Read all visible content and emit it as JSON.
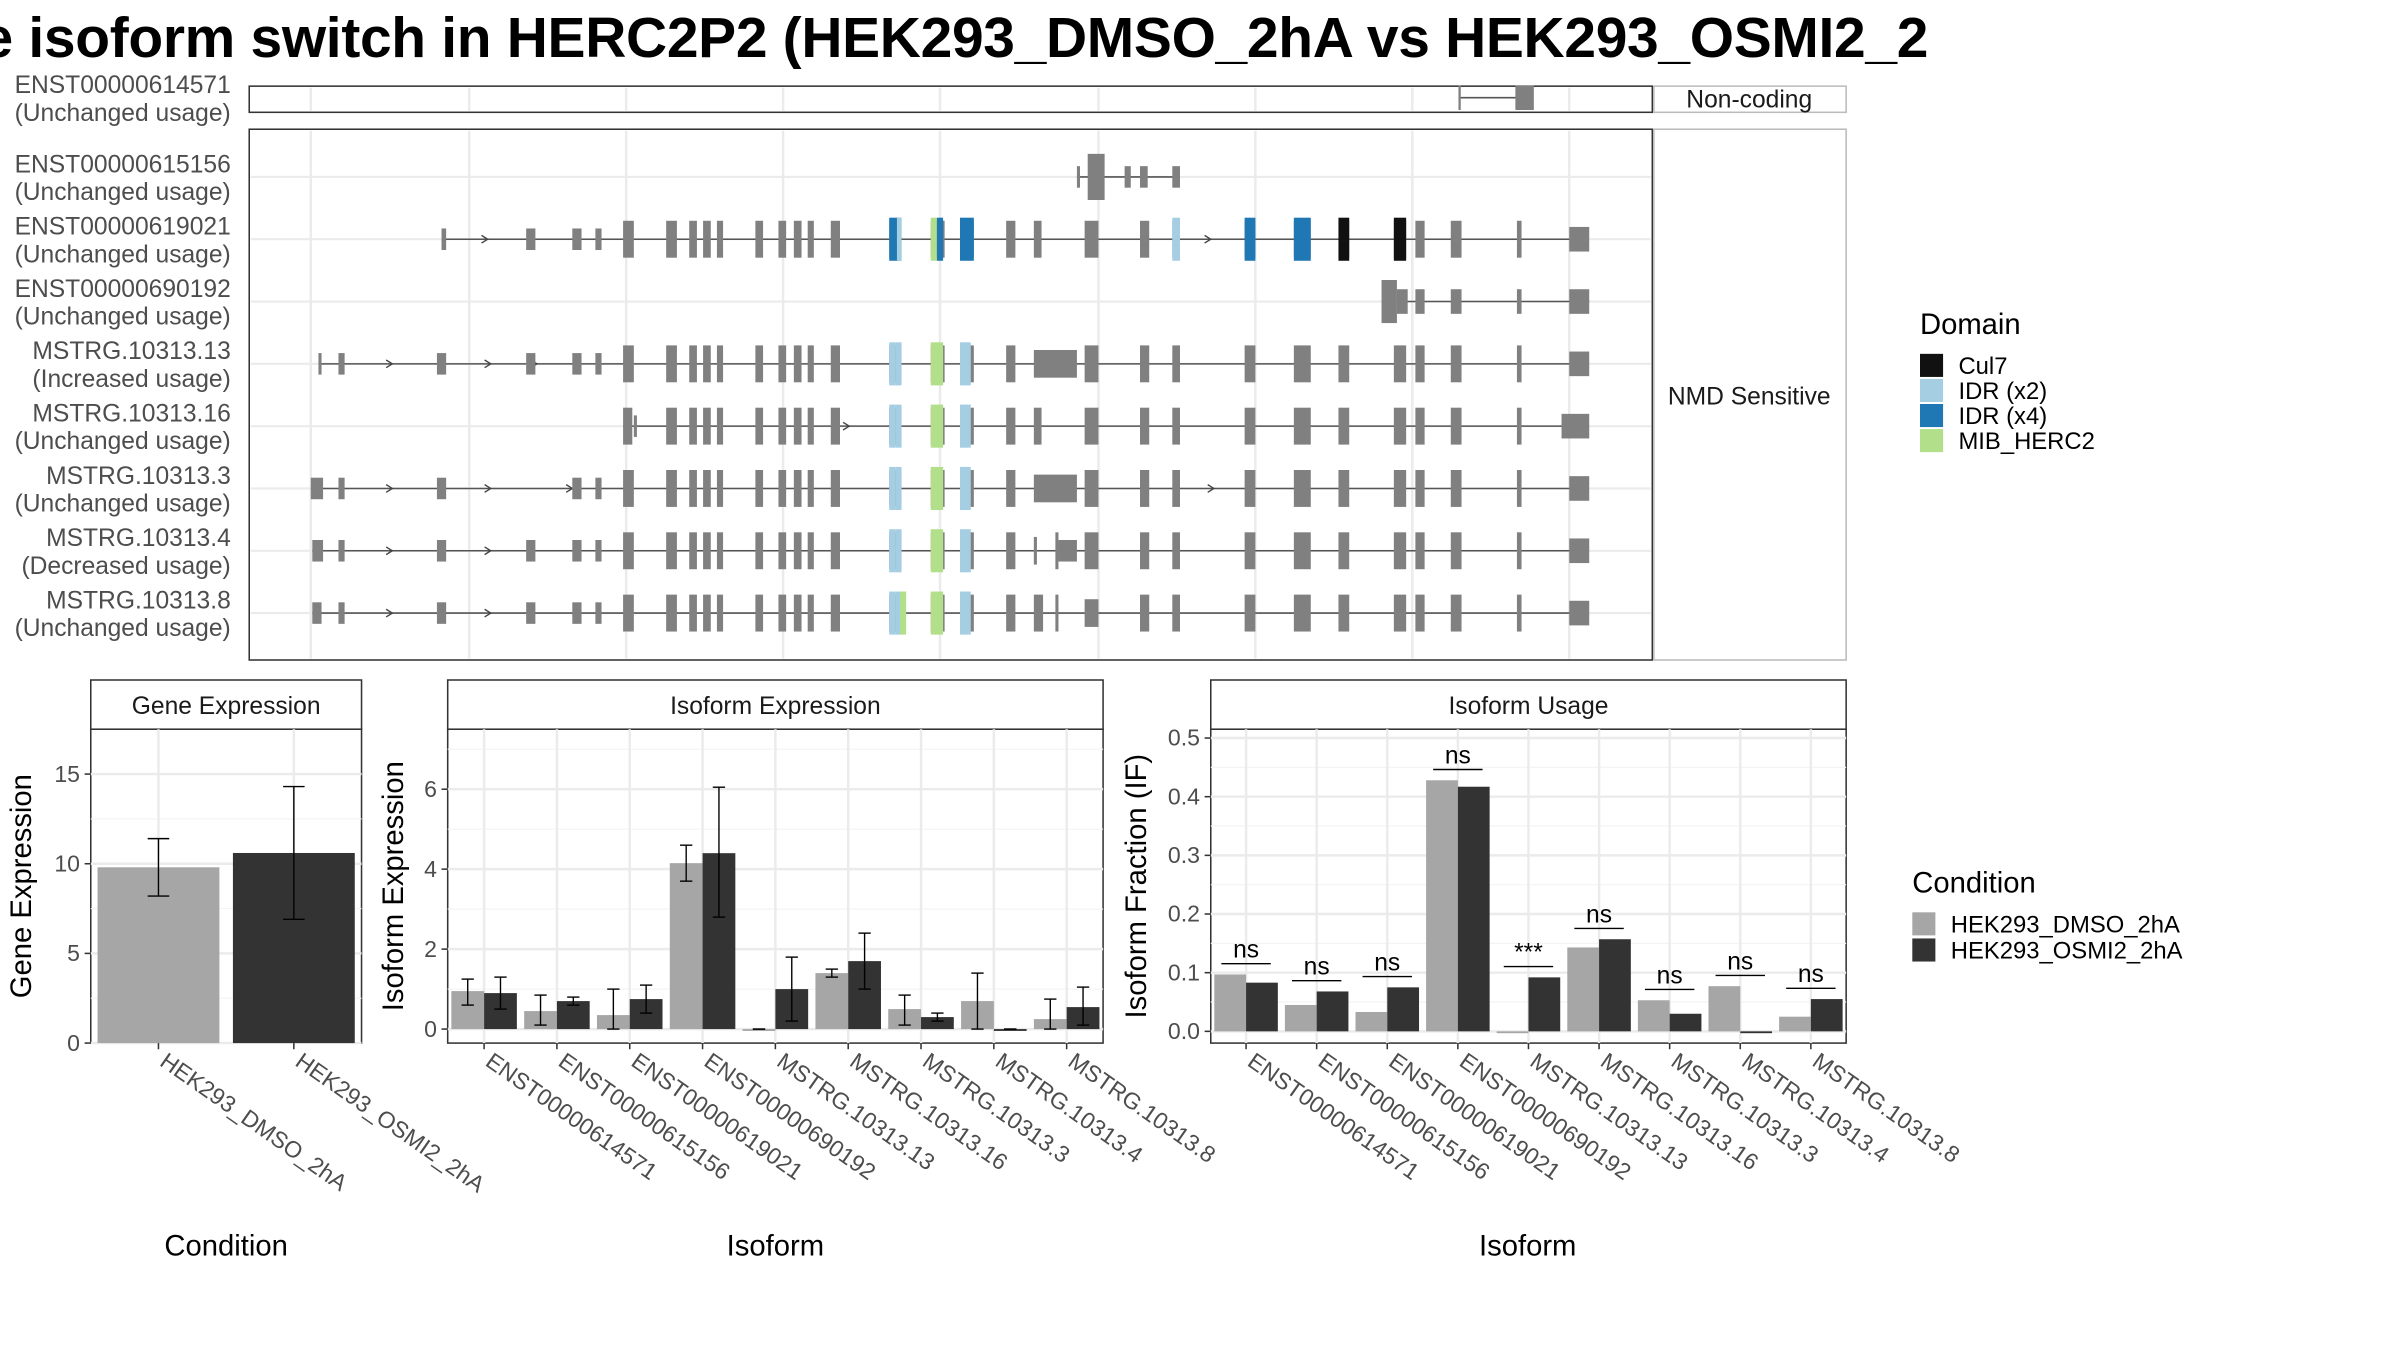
{
  "title": "e isoform switch in HERC2P2 (HEK293_DMSO_2hA vs HEK293_OSMI2_2",
  "transcripts": [
    {
      "id": "ENST00000614571",
      "usage": "(Unchanged usage)",
      "panel": 0
    },
    {
      "id": "ENST00000615156",
      "usage": "(Unchanged usage)",
      "panel": 1
    },
    {
      "id": "ENST00000619021",
      "usage": "(Unchanged usage)",
      "panel": 1
    },
    {
      "id": "ENST00000690192",
      "usage": "(Unchanged usage)",
      "panel": 1
    },
    {
      "id": "MSTRG.10313.13",
      "usage": "(Increased usage)",
      "panel": 1
    },
    {
      "id": "MSTRG.10313.16",
      "usage": "(Unchanged usage)",
      "panel": 1
    },
    {
      "id": "MSTRG.10313.3",
      "usage": "(Unchanged usage)",
      "panel": 1
    },
    {
      "id": "MSTRG.10313.4",
      "usage": "(Decreased usage)",
      "panel": 1
    },
    {
      "id": "MSTRG.10313.8",
      "usage": "(Unchanged usage)",
      "panel": 1
    }
  ],
  "facet_labels": [
    "Non-coding",
    "NMD Sensitive"
  ],
  "domain_legend": {
    "title": "Domain",
    "items": [
      {
        "label": "Cul7",
        "color": "#111111"
      },
      {
        "label": "IDR (x2)",
        "color": "#a6cee3"
      },
      {
        "label": "IDR (x4)",
        "color": "#1f78b4"
      },
      {
        "label": "MIB_HERC2",
        "color": "#b2df8a"
      }
    ]
  },
  "condition_legend": {
    "title": "Condition",
    "items": [
      {
        "label": "HEK293_DMSO_2hA",
        "color": "#a6a6a6"
      },
      {
        "label": "HEK293_OSMI2_2hA",
        "color": "#333333"
      }
    ]
  },
  "chart_data": [
    {
      "type": "bar",
      "title": "Gene Expression",
      "xlabel": "Condition",
      "ylabel": "Gene Expression",
      "ylim": [
        0,
        17.5
      ],
      "yticks": [
        0,
        5,
        10,
        15
      ],
      "categories": [
        "HEK293_DMSO_2hA",
        "HEK293_OSMI2_2hA"
      ],
      "values": [
        9.8,
        10.6
      ],
      "err_low": [
        8.2,
        6.9
      ],
      "err_high": [
        11.4,
        14.3
      ]
    },
    {
      "type": "bar",
      "title": "Isoform Expression",
      "xlabel": "Isoform",
      "ylabel": "Isoform Expression",
      "ylim": [
        -0.35,
        7.5
      ],
      "yticks": [
        0,
        2,
        4,
        6
      ],
      "categories": [
        "ENST00000614571",
        "ENST00000615156",
        "ENST00000619021",
        "ENST00000690192",
        "MSTRG.10313.13",
        "MSTRG.10313.16",
        "MSTRG.10313.3",
        "MSTRG.10313.4",
        "MSTRG.10313.8"
      ],
      "series": [
        {
          "name": "HEK293_DMSO_2hA",
          "values": [
            0.95,
            0.45,
            0.35,
            4.15,
            0.0,
            1.4,
            0.5,
            0.7,
            0.25
          ],
          "err_low": [
            0.6,
            0.1,
            0.0,
            3.7,
            0.0,
            1.3,
            0.1,
            0.0,
            0.0
          ],
          "err_high": [
            1.25,
            0.85,
            1.0,
            4.6,
            0.0,
            1.5,
            0.85,
            1.4,
            0.75
          ]
        },
        {
          "name": "HEK293_OSMI2_2hA",
          "values": [
            0.9,
            0.7,
            0.75,
            4.4,
            1.0,
            1.7,
            0.3,
            0.0,
            0.55
          ],
          "err_low": [
            0.5,
            0.6,
            0.4,
            2.8,
            0.2,
            1.0,
            0.2,
            0.0,
            0.1
          ],
          "err_high": [
            1.3,
            0.8,
            1.1,
            6.05,
            1.8,
            2.4,
            0.4,
            0.0,
            1.05
          ]
        }
      ]
    },
    {
      "type": "bar",
      "title": "Isoform Usage",
      "xlabel": "Isoform",
      "ylabel": "Isoform Fraction (IF)",
      "ylim": [
        -0.02,
        0.515
      ],
      "yticks": [
        0.0,
        0.1,
        0.2,
        0.3,
        0.4,
        0.5
      ],
      "ytick_labels": [
        "0.0",
        "0.1",
        "0.2",
        "0.3",
        "0.4",
        "0.5"
      ],
      "categories": [
        "ENST00000614571",
        "ENST00000615156",
        "ENST00000619021",
        "ENST00000690192",
        "MSTRG.10313.13",
        "MSTRG.10313.16",
        "MSTRG.10313.3",
        "MSTRG.10313.4",
        "MSTRG.10313.8"
      ],
      "series": [
        {
          "name": "HEK293_DMSO_2hA",
          "values": [
            0.097,
            0.045,
            0.033,
            0.428,
            0.0,
            0.143,
            0.053,
            0.077,
            0.025
          ]
        },
        {
          "name": "HEK293_OSMI2_2hA",
          "values": [
            0.083,
            0.068,
            0.075,
            0.417,
            0.092,
            0.157,
            0.03,
            0.0,
            0.055
          ]
        }
      ],
      "significance": [
        "ns",
        "ns",
        "ns",
        "ns",
        "***",
        "ns",
        "ns",
        "ns",
        "ns"
      ]
    }
  ]
}
